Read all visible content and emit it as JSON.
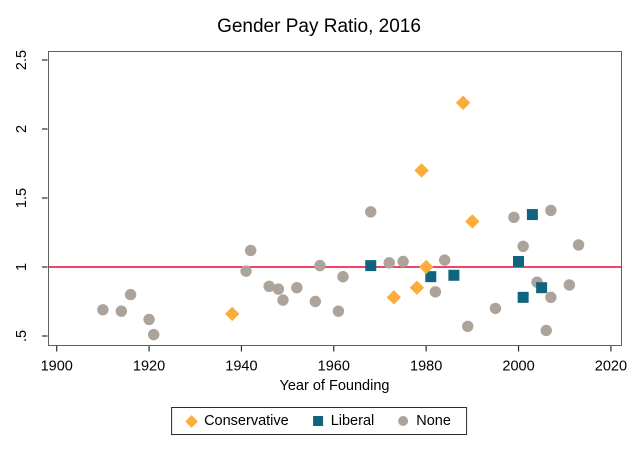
{
  "chart_data": {
    "type": "scatter",
    "title": "Gender Pay Ratio, 2016",
    "xlabel": "Year of Founding",
    "ylabel": "",
    "x_ticks": [
      1900,
      1920,
      1940,
      1960,
      1980,
      2000,
      2020
    ],
    "y_ticks": [
      {
        "value": 0.5,
        "label": ".5"
      },
      {
        "value": 1,
        "label": "1"
      },
      {
        "value": 1.5,
        "label": "1.5"
      },
      {
        "value": 2,
        "label": "2"
      },
      {
        "value": 2.5,
        "label": "2.5"
      }
    ],
    "xlim": [
      1898,
      2022
    ],
    "ylim": [
      0.45,
      2.55
    ],
    "grid": false,
    "legend_position": "bottom-center",
    "ref_line": {
      "y": 1,
      "color": "#EE2A55"
    },
    "colors": {
      "frame": "#606060",
      "axis": "#2b2b2b",
      "text": "#000000"
    },
    "series": [
      {
        "name": "Conservative",
        "marker": "diamond",
        "color": "#FBAD3B",
        "points": [
          [
            1938,
            0.66
          ],
          [
            1973,
            0.78
          ],
          [
            1978,
            0.85
          ],
          [
            1979,
            1.7
          ],
          [
            1980,
            1.0
          ],
          [
            1988,
            2.19
          ],
          [
            1990,
            1.33
          ]
        ]
      },
      {
        "name": "Liberal",
        "marker": "square",
        "color": "#11647E",
        "points": [
          [
            1968,
            1.01
          ],
          [
            1981,
            0.93
          ],
          [
            1986,
            0.94
          ],
          [
            2000,
            1.04
          ],
          [
            2001,
            0.78
          ],
          [
            2003,
            1.38
          ],
          [
            2005,
            0.85
          ]
        ]
      },
      {
        "name": "None",
        "marker": "circle",
        "color": "#ACA39B",
        "points": [
          [
            1910,
            0.69
          ],
          [
            1914,
            0.68
          ],
          [
            1916,
            0.8
          ],
          [
            1920,
            0.62
          ],
          [
            1921,
            0.51
          ],
          [
            1941,
            0.97
          ],
          [
            1942,
            1.12
          ],
          [
            1946,
            0.86
          ],
          [
            1948,
            0.84
          ],
          [
            1949,
            0.76
          ],
          [
            1952,
            0.85
          ],
          [
            1956,
            0.75
          ],
          [
            1957,
            1.01
          ],
          [
            1961,
            0.68
          ],
          [
            1962,
            0.93
          ],
          [
            1968,
            1.4
          ],
          [
            1972,
            1.03
          ],
          [
            1975,
            1.04
          ],
          [
            1982,
            0.82
          ],
          [
            1984,
            1.05
          ],
          [
            1989,
            0.57
          ],
          [
            1995,
            0.7
          ],
          [
            1999,
            1.36
          ],
          [
            2001,
            1.15
          ],
          [
            2004,
            0.89
          ],
          [
            2006,
            0.54
          ],
          [
            2007,
            0.78
          ],
          [
            2007,
            1.41
          ],
          [
            2011,
            0.87
          ],
          [
            2013,
            1.16
          ]
        ]
      }
    ]
  }
}
